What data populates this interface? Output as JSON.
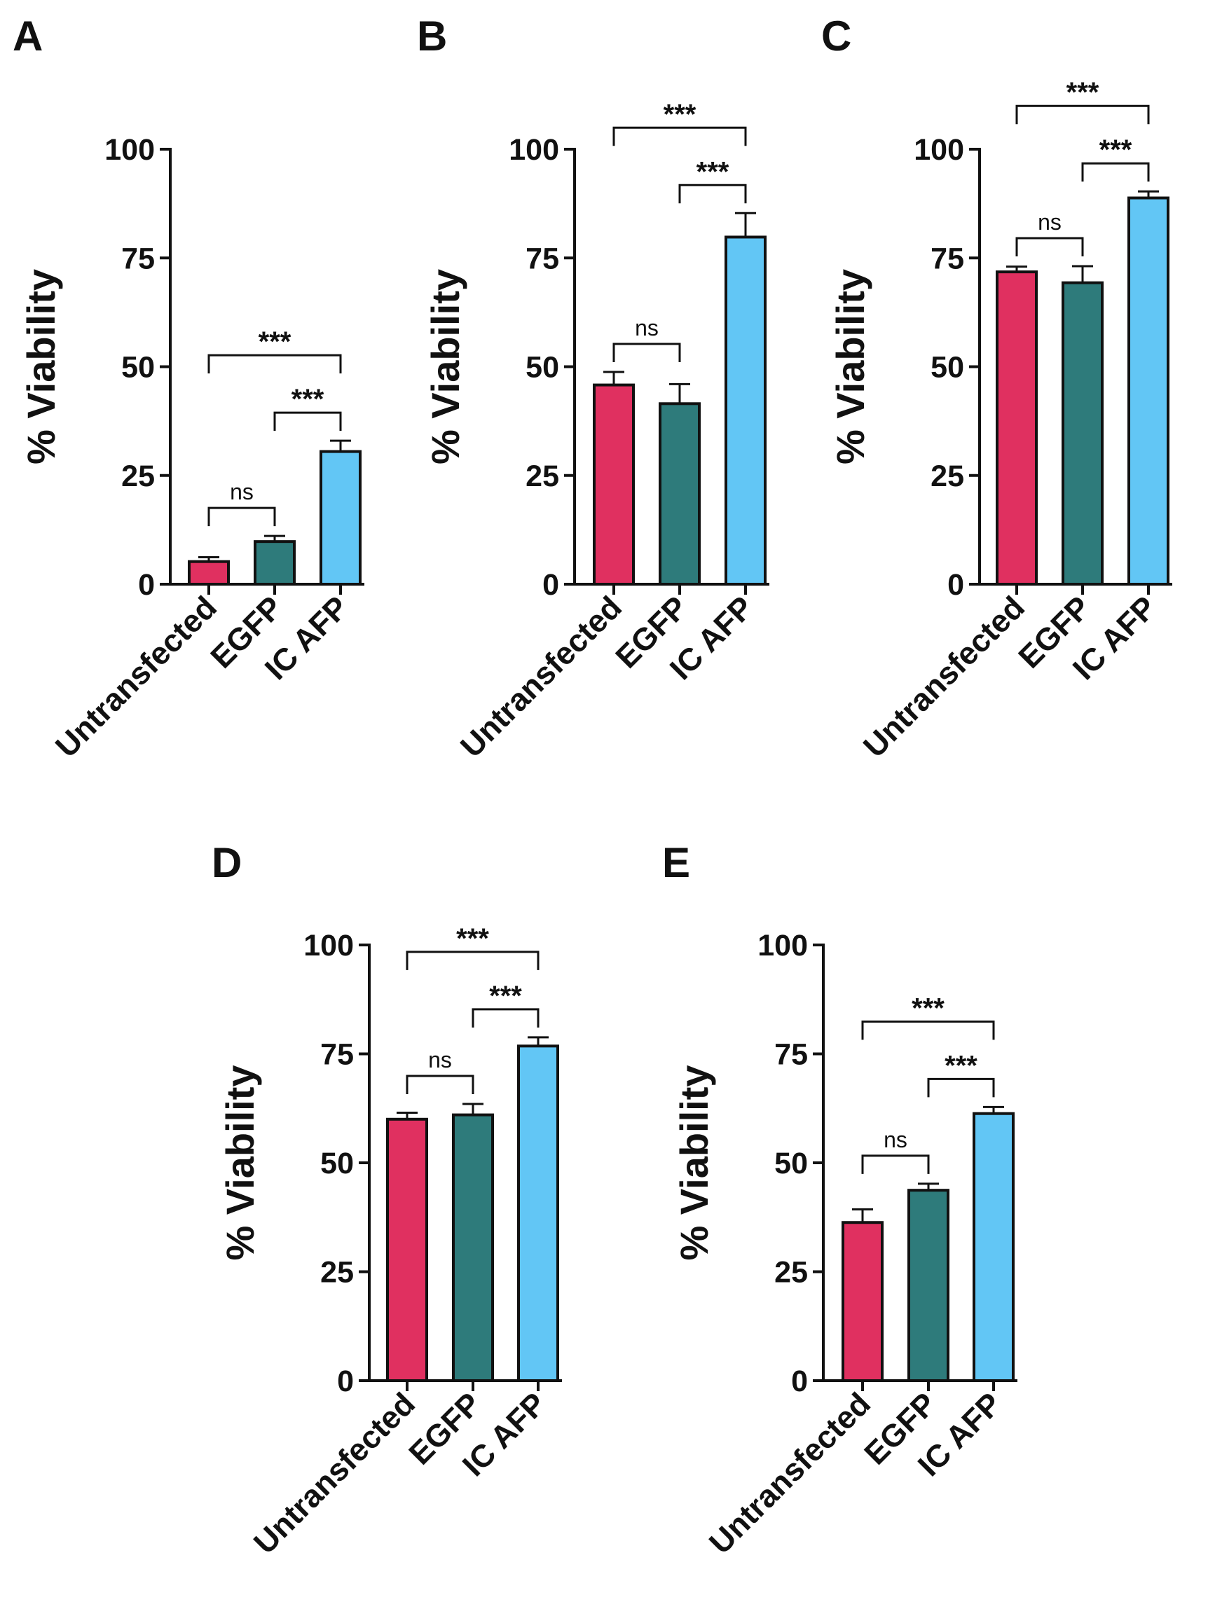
{
  "figure": {
    "series_colors": [
      "#e03060",
      "#2e7b7b",
      "#62c6f5"
    ],
    "ink_color": "#111111"
  },
  "chart_data": [
    {
      "panel": "A",
      "type": "bar",
      "categories": [
        "Untransfected",
        "EGFP",
        "IC AFP"
      ],
      "values": [
        5.2,
        9.8,
        30.5
      ],
      "errors": [
        1.0,
        1.3,
        2.5
      ],
      "ylabel": "% Viability",
      "ylim": [
        0,
        100
      ],
      "yticks": [
        0,
        25,
        50,
        75,
        100
      ],
      "significance": [
        {
          "from": 0,
          "to": 1,
          "label": "ns"
        },
        {
          "from": 1,
          "to": 2,
          "label": "***"
        },
        {
          "from": 0,
          "to": 2,
          "label": "***"
        }
      ]
    },
    {
      "panel": "B",
      "type": "bar",
      "categories": [
        "Untransfected",
        "EGFP",
        "IC AFP"
      ],
      "values": [
        45.8,
        41.5,
        79.8
      ],
      "errors": [
        3.0,
        4.5,
        5.5
      ],
      "ylabel": "% Viability",
      "ylim": [
        0,
        100
      ],
      "yticks": [
        0,
        25,
        50,
        75,
        100
      ],
      "significance": [
        {
          "from": 0,
          "to": 1,
          "label": "ns"
        },
        {
          "from": 1,
          "to": 2,
          "label": "***"
        },
        {
          "from": 0,
          "to": 2,
          "label": "***"
        }
      ]
    },
    {
      "panel": "C",
      "type": "bar",
      "categories": [
        "Untransfected",
        "EGFP",
        "IC AFP"
      ],
      "values": [
        71.8,
        69.3,
        88.8
      ],
      "errors": [
        1.2,
        3.8,
        1.5
      ],
      "ylabel": "% Viability",
      "ylim": [
        0,
        100
      ],
      "yticks": [
        0,
        25,
        50,
        75,
        100
      ],
      "significance": [
        {
          "from": 0,
          "to": 1,
          "label": "ns"
        },
        {
          "from": 1,
          "to": 2,
          "label": "***"
        },
        {
          "from": 0,
          "to": 2,
          "label": "***"
        }
      ]
    },
    {
      "panel": "D",
      "type": "bar",
      "categories": [
        "Untransfected",
        "EGFP",
        "IC AFP"
      ],
      "values": [
        60.0,
        61.0,
        76.8
      ],
      "errors": [
        1.5,
        2.5,
        2.0
      ],
      "ylabel": "% Viability",
      "ylim": [
        0,
        100
      ],
      "yticks": [
        0,
        25,
        50,
        75,
        100
      ],
      "significance": [
        {
          "from": 0,
          "to": 1,
          "label": "ns"
        },
        {
          "from": 1,
          "to": 2,
          "label": "***"
        },
        {
          "from": 0,
          "to": 2,
          "label": "***"
        }
      ]
    },
    {
      "panel": "E",
      "type": "bar",
      "categories": [
        "Untransfected",
        "EGFP",
        "IC AFP"
      ],
      "values": [
        36.3,
        43.7,
        61.3
      ],
      "errors": [
        3.0,
        1.5,
        1.5
      ],
      "ylabel": "% Viability",
      "ylim": [
        0,
        100
      ],
      "yticks": [
        0,
        25,
        50,
        75,
        100
      ],
      "significance": [
        {
          "from": 0,
          "to": 1,
          "label": "ns"
        },
        {
          "from": 1,
          "to": 2,
          "label": "***"
        },
        {
          "from": 0,
          "to": 2,
          "label": "***"
        }
      ]
    }
  ]
}
